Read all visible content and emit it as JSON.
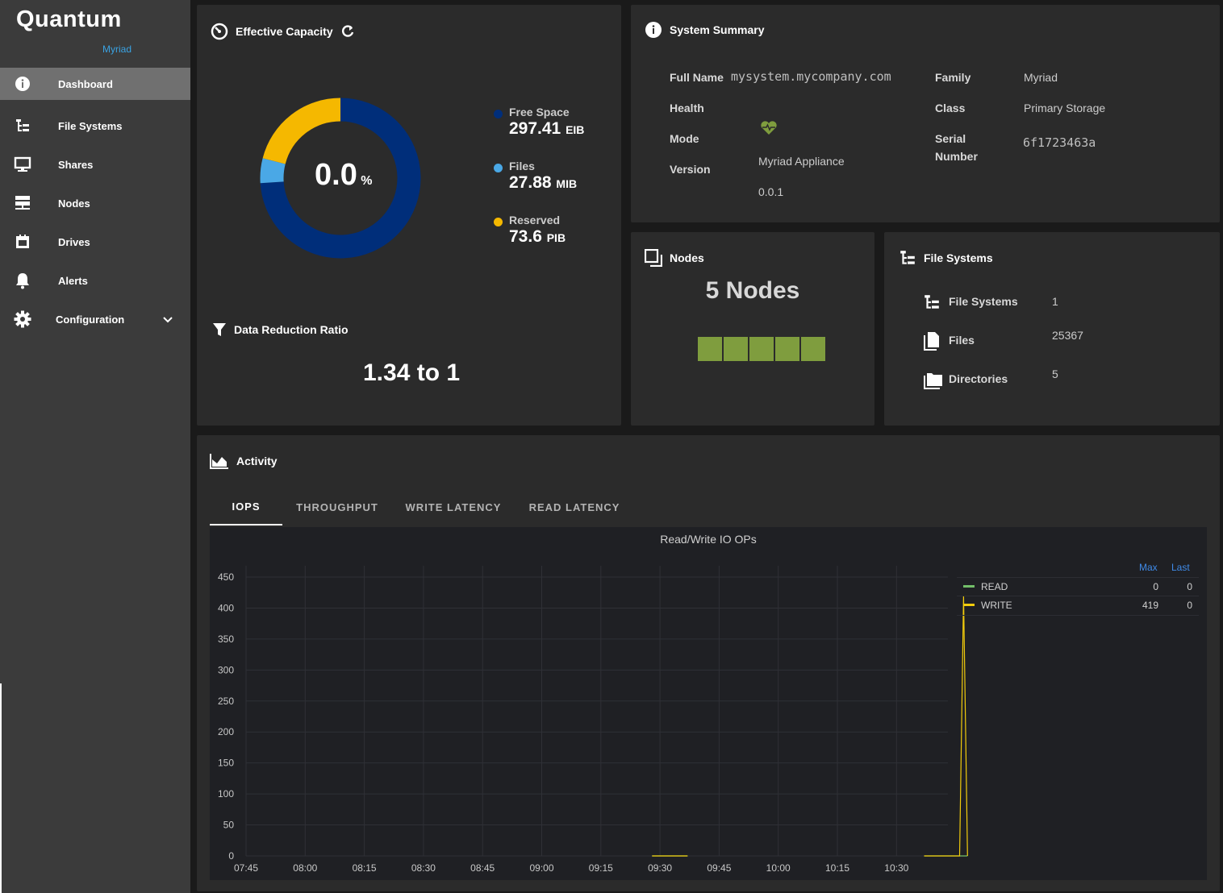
{
  "brand": {
    "name": "Quantum",
    "sub": "Myriad"
  },
  "nav": {
    "items": [
      {
        "label": "Dashboard",
        "icon": "info-icon"
      },
      {
        "label": "File Systems",
        "icon": "tree-icon"
      },
      {
        "label": "Shares",
        "icon": "monitor-icon"
      },
      {
        "label": "Nodes",
        "icon": "server-icon"
      },
      {
        "label": "Drives",
        "icon": "drive-icon"
      },
      {
        "label": "Alerts",
        "icon": "bell-icon"
      },
      {
        "label": "Configuration",
        "icon": "gear-icon"
      }
    ]
  },
  "capacity": {
    "title": "Effective Capacity",
    "percent": "0.0",
    "percent_unit": "%",
    "legend": [
      {
        "label": "Free Space",
        "value": "297.41",
        "unit": "EIB",
        "color": "#002e7a"
      },
      {
        "label": "Files",
        "value": "27.88",
        "unit": "MIB",
        "color": "#4aa8e6"
      },
      {
        "label": "Reserved",
        "value": "73.6",
        "unit": "PIB",
        "color": "#f5b800"
      }
    ],
    "donut_fractions": {
      "free": 0.74,
      "files": 0.05,
      "reserved": 0.21
    },
    "drr_title": "Data Reduction Ratio",
    "drr_value": "1.34 to 1"
  },
  "summary": {
    "title": "System Summary",
    "full_name_label": "Full Name",
    "full_name": "mysystem.mycompany.com",
    "health_label": "Health",
    "mode_label": "Mode",
    "mode": "Myriad Appliance",
    "version_label": "Version",
    "version": "0.0.1",
    "family_label": "Family",
    "family": "Myriad",
    "class_label": "Class",
    "class": "Primary Storage",
    "serial_label_1": "Serial",
    "serial_label_2": "Number",
    "serial": "6f1723463a"
  },
  "nodes": {
    "title": "Nodes",
    "count_text": "5 Nodes",
    "count": 5,
    "color": "#7f9d3e"
  },
  "filesystems": {
    "title": "File Systems",
    "rows": [
      {
        "label": "File Systems",
        "value": "1"
      },
      {
        "label": "Files",
        "value": "25367"
      },
      {
        "label": "Directories",
        "value": "5"
      }
    ]
  },
  "activity": {
    "title": "Activity",
    "tabs": [
      "IOPS",
      "THROUGHPUT",
      "WRITE LATENCY",
      "READ LATENCY"
    ],
    "active_tab": "IOPS"
  },
  "chart_data": {
    "type": "line",
    "title": "Read/Write IO OPs",
    "xlabel": "",
    "ylabel": "",
    "yticks": [
      0,
      50,
      100,
      150,
      200,
      250,
      300,
      350,
      400,
      450
    ],
    "xticks": [
      "07:45",
      "08:00",
      "08:15",
      "08:30",
      "08:45",
      "09:00",
      "09:15",
      "09:30",
      "09:45",
      "10:00",
      "10:15",
      "10:30"
    ],
    "ylim": [
      0,
      450
    ],
    "grid": true,
    "legend_columns": [
      "Max",
      "Last"
    ],
    "series": [
      {
        "name": "READ",
        "color": "#73bf69",
        "max": "0",
        "last": "0",
        "points": [
          [
            "09:28",
            0
          ],
          [
            "09:37",
            0
          ],
          [
            "10:37",
            0
          ],
          [
            "10:48",
            0
          ]
        ]
      },
      {
        "name": "WRITE",
        "color": "#f2cc0c",
        "max": "419",
        "last": "0",
        "points": [
          [
            "09:28",
            0
          ],
          [
            "09:37",
            0
          ],
          [
            "10:37",
            0
          ],
          [
            "10:46",
            0
          ],
          [
            "10:47",
            419
          ],
          [
            "10:48",
            0
          ]
        ]
      }
    ]
  }
}
